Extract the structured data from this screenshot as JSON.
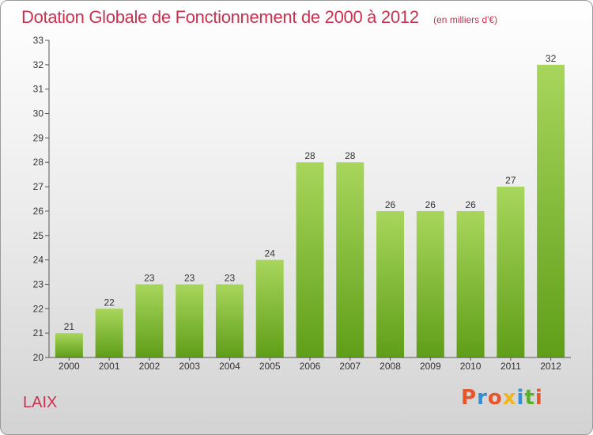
{
  "header": {
    "title": "Dotation Globale de Fonctionnement de 2000 à 2012",
    "subtitle": "(en milliers d'€)"
  },
  "footer": {
    "commune": "LAIX",
    "logo_text": "Proxiti",
    "logo_colors": [
      "#e8552a",
      "#2f8fd6",
      "#e8552a",
      "#f2b51c",
      "#2f8fd6",
      "#5aae2e",
      "#e8552a"
    ]
  },
  "chart_data": {
    "type": "bar",
    "categories": [
      "2000",
      "2001",
      "2002",
      "2003",
      "2004",
      "2005",
      "2006",
      "2007",
      "2008",
      "2009",
      "2010",
      "2011",
      "2012"
    ],
    "values": [
      21,
      22,
      23,
      23,
      23,
      24,
      28,
      28,
      26,
      26,
      26,
      27,
      32
    ],
    "data_labels": [
      "21",
      "22",
      "23",
      "23",
      "23",
      "24",
      "28",
      "28",
      "26",
      "26",
      "26",
      "27",
      "32"
    ],
    "y_ticks": [
      "20",
      "21",
      "22",
      "23",
      "24",
      "25",
      "26",
      "27",
      "28",
      "29",
      "30",
      "31",
      "32",
      "33"
    ],
    "ylim": [
      20,
      33
    ],
    "grid": false,
    "bar_color_top": "#a8d65c",
    "bar_color_bottom": "#5f9e18",
    "axis_color": "#555555"
  }
}
